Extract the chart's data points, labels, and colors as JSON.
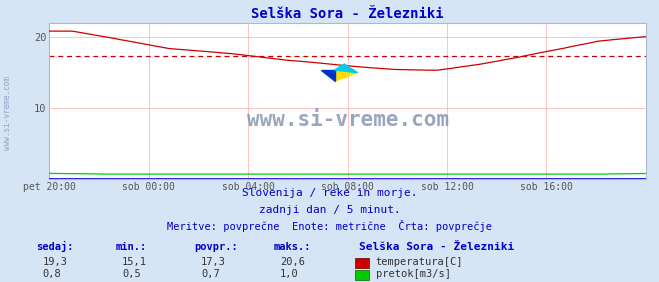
{
  "title": "Selška Sora - Železniki",
  "title_color": "#0000cc",
  "bg_color": "#d5e5f5",
  "plot_bg_color": "#ffffff",
  "x_labels": [
    "pet 20:00",
    "sob 00:00",
    "sob 04:00",
    "sob 08:00",
    "sob 12:00",
    "sob 16:00"
  ],
  "x_ticks_norm": [
    0.0,
    0.1667,
    0.3333,
    0.5,
    0.6667,
    0.8333
  ],
  "y_min": 0,
  "y_max": 22,
  "y_ticks": [
    10,
    20
  ],
  "grid_color": "#ffaaaa",
  "avg_line_color": "#cc0000",
  "avg_line_value": 17.3,
  "temp_color": "#cc0000",
  "flow_color": "#00cc00",
  "blue_line_color": "#0000dd",
  "watermark_text": "www.si-vreme.com",
  "watermark_color": "#7788aa",
  "subtitle1": "Slovenija / reke in morje.",
  "subtitle2": "zadnji dan / 5 minut.",
  "subtitle3": "Meritve: povprečne  Enote: metrične  Črta: povprečje",
  "subtitle_color": "#0000cc",
  "table_header_color": "#0000cc",
  "table_label": "Selška Sora - Železniki",
  "col_headers": [
    "sedaj:",
    "min.:",
    "povpr.:",
    "maks.:"
  ],
  "temp_row": [
    "19,3",
    "15,1",
    "17,3",
    "20,6"
  ],
  "flow_row": [
    "0,8",
    "0,5",
    "0,7",
    "1,0"
  ],
  "legend_temp": "temperatura[C]",
  "legend_flow": "pretok[m3/s]",
  "n_points": 289,
  "temp_min": 15.1,
  "temp_max": 20.6,
  "temp_avg": 17.3,
  "flow_val": 0.7,
  "flow_min": 0.5,
  "flow_max": 1.0
}
